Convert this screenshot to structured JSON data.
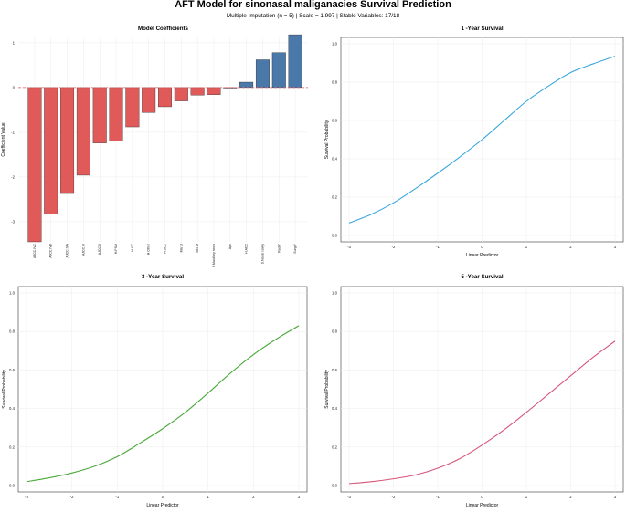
{
  "figure": {
    "title": "AFT Model for sinonasal maliganacies Survival Prediction",
    "subtitle": "Multiple Imputation (n = 5) | Scale = 1.997 | Stable Variables: 17/18"
  },
  "colors": {
    "negative_bar": "#e05a5a",
    "positive_bar": "#4a78a8",
    "zero_line": "#e05a5a",
    "curve_1y": "#3aa7dd",
    "curve_3y": "#4aa83a",
    "curve_5y": "#d6557a",
    "grid": "#ececec"
  },
  "chart_data": [
    {
      "id": "coef",
      "type": "bar",
      "title": "Model Coefficients",
      "xlabel": "",
      "ylabel": "Coefficient Value",
      "ylim": [
        -3.45,
        1.12
      ],
      "yticks": [
        -3,
        -2,
        -1,
        0,
        1
      ],
      "grid": true,
      "categories": [
        "AJCC.IVC",
        "AJCC.IVB",
        "AJCC.IVA",
        "AJCC.III",
        "AJCC.II",
        "H.PSM",
        "H.UC",
        "H.Other",
        "H.SCC",
        "Mar.U",
        "Sex.M",
        "S.Maxillary sinus",
        "Age",
        "H.ACC",
        "S.Nasal cavity",
        "Rad.Y",
        "Surg.Y"
      ],
      "values": [
        -3.45,
        -2.83,
        -2.37,
        -1.96,
        -1.24,
        -1.2,
        -0.88,
        -0.56,
        -0.43,
        -0.3,
        -0.17,
        -0.16,
        0.0,
        0.12,
        0.62,
        0.78,
        1.18
      ]
    },
    {
      "id": "y1",
      "type": "line",
      "title": "1 -Year Survival",
      "xlabel": "Linear Predictor",
      "ylabel": "Survival Probability",
      "xlim": [
        -3,
        3
      ],
      "ylim": [
        0,
        1
      ],
      "xticks": [
        -3,
        -2,
        -1,
        0,
        1,
        2,
        3
      ],
      "yticks": [
        0.0,
        0.2,
        0.4,
        0.6,
        0.8,
        1.0
      ],
      "x": [
        -3,
        -2.5,
        -2,
        -1.5,
        -1,
        -0.5,
        0,
        0.5,
        1,
        1.5,
        2,
        2.5,
        3
      ],
      "y": [
        0.065,
        0.11,
        0.17,
        0.245,
        0.325,
        0.41,
        0.5,
        0.6,
        0.7,
        0.78,
        0.85,
        0.895,
        0.935
      ]
    },
    {
      "id": "y3",
      "type": "line",
      "title": "3 -Year Survival",
      "xlabel": "Linear Predictor",
      "ylabel": "Survival Probability",
      "xlim": [
        -3,
        3
      ],
      "ylim": [
        0,
        1
      ],
      "xticks": [
        -3,
        -2,
        -1,
        0,
        1,
        2,
        3
      ],
      "yticks": [
        0.0,
        0.2,
        0.4,
        0.6,
        0.8,
        1.0
      ],
      "x": [
        -3,
        -2.5,
        -2,
        -1.5,
        -1,
        -0.5,
        0,
        0.5,
        1,
        1.5,
        2,
        2.5,
        3
      ],
      "y": [
        0.02,
        0.04,
        0.065,
        0.1,
        0.15,
        0.22,
        0.295,
        0.38,
        0.48,
        0.585,
        0.68,
        0.76,
        0.83
      ]
    },
    {
      "id": "y5",
      "type": "line",
      "title": "5 -Year Survival",
      "xlabel": "Linear Predictor",
      "ylabel": "Survival Probability",
      "xlim": [
        -3,
        3
      ],
      "ylim": [
        0,
        1
      ],
      "xticks": [
        -3,
        -2,
        -1,
        0,
        1,
        2,
        3
      ],
      "yticks": [
        0.0,
        0.2,
        0.4,
        0.6,
        0.8,
        1.0
      ],
      "x": [
        -3,
        -2.5,
        -2,
        -1.5,
        -1,
        -0.5,
        0,
        0.5,
        1,
        1.5,
        2,
        2.5,
        3
      ],
      "y": [
        0.01,
        0.02,
        0.035,
        0.055,
        0.09,
        0.14,
        0.21,
        0.29,
        0.38,
        0.475,
        0.57,
        0.665,
        0.75
      ]
    }
  ]
}
